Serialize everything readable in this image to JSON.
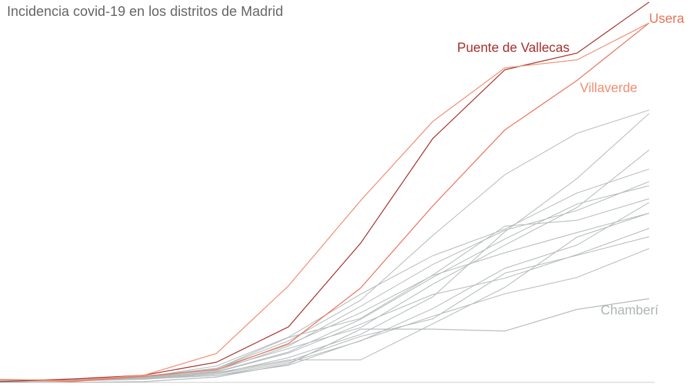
{
  "chart_data": {
    "type": "line",
    "title": "Incidencia covid-19 en los distritos de Madrid",
    "xlabel": "",
    "ylabel": "",
    "x": [
      0,
      1,
      2,
      3,
      4,
      5,
      6,
      7,
      8,
      9
    ],
    "ylim": [
      0,
      100
    ],
    "grid": false,
    "legend": "direct labels at line ends",
    "highlighted_series": [
      {
        "name": "Usera",
        "color": "#e8735a",
        "values": [
          0.8,
          0.2,
          1.6,
          3.3,
          10.2,
          24.8,
          46.4,
          66.4,
          79.4,
          94.5
        ]
      },
      {
        "name": "Puente de Vallecas",
        "color": "#a6322c",
        "values": [
          0.2,
          0.9,
          1.9,
          5.3,
          14.6,
          36.6,
          64.1,
          82.2,
          86.6,
          100
        ]
      },
      {
        "name": "Villaverde",
        "color": "#f08e73",
        "values": [
          0.8,
          0.5,
          1.9,
          7.6,
          25.4,
          47.8,
          68.6,
          82.7,
          84.8,
          94.5
        ]
      },
      {
        "name": "Chamberí",
        "color": "#b5babb",
        "values": [
          0,
          0,
          0.2,
          1.4,
          4.8,
          14.0,
          14.0,
          13.5,
          19.2,
          22.0
        ]
      }
    ],
    "other_series": [
      [
        0.4,
        0.7,
        0.9,
        1.8,
        5.2,
        10.9,
        19.4,
        30.0,
        36.1,
        47.3
      ],
      [
        0.1,
        0.5,
        1.1,
        2.8,
        8.0,
        16.6,
        27.6,
        37.7,
        46.9,
        51.7
      ],
      [
        0.3,
        0.6,
        1.3,
        3.0,
        9.5,
        20.0,
        31.0,
        40.0,
        45.2,
        52.8
      ],
      [
        0.4,
        0.9,
        1.6,
        3.7,
        10.9,
        21.6,
        38.6,
        54.6,
        65.5,
        71.6
      ],
      [
        0.2,
        0.4,
        0.8,
        2.2,
        5.6,
        12.1,
        16.7,
        28.7,
        33.4,
        38.3
      ],
      [
        0.6,
        0.7,
        1.2,
        2.7,
        7.7,
        15.3,
        23.1,
        27.4,
        33.6,
        40.5
      ],
      [
        0.3,
        0.5,
        0.9,
        1.8,
        4.5,
        11.0,
        17.4,
        23.3,
        27.6,
        35.2
      ],
      [
        0.5,
        0.8,
        1.4,
        3.7,
        9.9,
        18.3,
        28.1,
        34.1,
        39.4,
        44.5
      ],
      [
        0.4,
        0.6,
        1.0,
        2.5,
        5.9,
        5.9,
        15.4,
        25.0,
        38.2,
        44.5
      ],
      [
        0.5,
        0.9,
        1.5,
        3.4,
        8.9,
        14.4,
        25.8,
        36.1,
        46.0,
        61.1
      ],
      [
        0.2,
        0.4,
        0.9,
        2.2,
        6.5,
        12.6,
        22.5,
        39.6,
        53.6,
        70.7
      ],
      [
        0.4,
        0.7,
        1.4,
        4.3,
        11.9,
        23.2,
        33.3,
        40.3,
        49.8,
        56.1
      ],
      [
        0.3,
        0.6,
        1.2,
        3.6,
        11.8,
        16.8,
        28.2,
        41.1,
        42.6,
        48.3
      ]
    ]
  }
}
